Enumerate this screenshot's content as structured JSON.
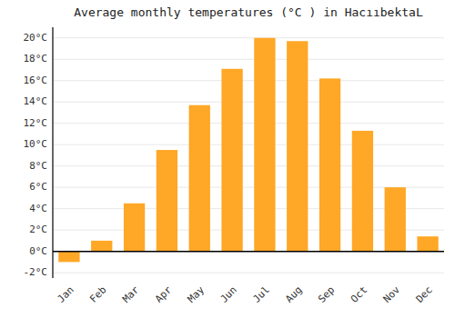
{
  "chart_data": {
    "type": "bar",
    "title": "Average monthly temperatures (°C ) in HacııbektaL",
    "categories": [
      "Jan",
      "Feb",
      "Mar",
      "Apr",
      "May",
      "Jun",
      "Jul",
      "Aug",
      "Sep",
      "Oct",
      "Nov",
      "Dec"
    ],
    "values": [
      -1.0,
      1.0,
      4.5,
      9.5,
      13.7,
      17.1,
      20.0,
      19.7,
      16.2,
      11.3,
      6.0,
      1.4
    ],
    "color": "#FFA726",
    "ylim": [
      -2.5,
      21
    ],
    "yticks": [
      {
        "value": -2,
        "label": "-2°C"
      },
      {
        "value": 0,
        "label": "0°C"
      },
      {
        "value": 2,
        "label": "2°C"
      },
      {
        "value": 4,
        "label": "4°C"
      },
      {
        "value": 6,
        "label": "6°C"
      },
      {
        "value": 8,
        "label": "8°C"
      },
      {
        "value": 10,
        "label": "10°C"
      },
      {
        "value": 12,
        "label": "12°C"
      },
      {
        "value": 14,
        "label": "14°C"
      },
      {
        "value": 16,
        "label": "16°C"
      },
      {
        "value": 18,
        "label": "18°C"
      },
      {
        "value": 20,
        "label": "20°C"
      }
    ],
    "grid": true
  }
}
